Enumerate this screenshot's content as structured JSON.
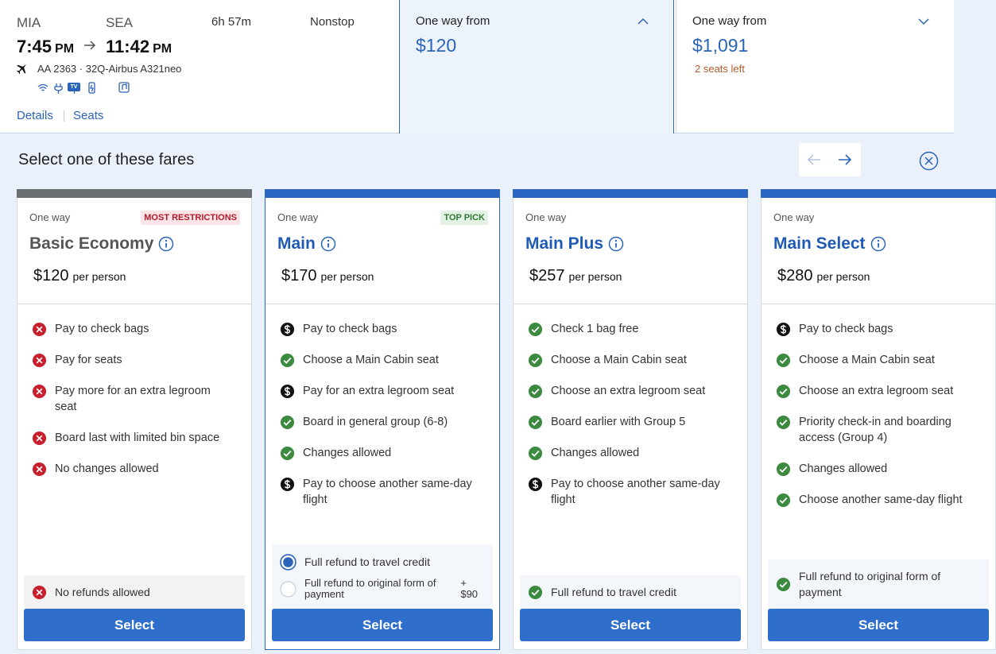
{
  "flight": {
    "origin": "MIA",
    "destination": "SEA",
    "depart_time": "7:45",
    "depart_period": "PM",
    "arrive_time": "11:42",
    "arrive_period": "PM",
    "duration": "6h 57m",
    "stops": "Nonstop",
    "aircraft": "AA 2363 · 32Q-Airbus A321neo",
    "tv_badge": "TV",
    "links": [
      "Details",
      "Seats"
    ]
  },
  "cabins": [
    {
      "label": "One way from",
      "price": "$120",
      "selected": true
    },
    {
      "label": "One way from",
      "price": "$1,091",
      "note": "2 seats left",
      "selected": false
    }
  ],
  "fares_panel": {
    "title": "Select one of these fares"
  },
  "fares": [
    {
      "trip": "One way",
      "badge": "MOST RESTRICTIONS",
      "badge_style": "warn",
      "name": "Basic Economy",
      "style": "basic",
      "price": "$120",
      "per": "per person",
      "features": [
        {
          "icon": "x",
          "text": "Pay to check bags"
        },
        {
          "icon": "x",
          "text": "Pay for seats"
        },
        {
          "icon": "x",
          "text": "Pay more for an extra legroom seat"
        },
        {
          "icon": "x",
          "text": "Board last with limited bin space"
        },
        {
          "icon": "x",
          "text": "No changes allowed"
        }
      ],
      "refund": {
        "style": "grey",
        "options": [
          {
            "icon": "x",
            "text": "No refunds allowed"
          }
        ]
      },
      "button": "Select"
    },
    {
      "trip": "One way",
      "badge": "TOP PICK",
      "badge_style": "good",
      "name": "Main",
      "style": "selected",
      "price": "$170",
      "per": "per person",
      "features": [
        {
          "icon": "dollar",
          "text": "Pay to check bags"
        },
        {
          "icon": "check",
          "text": "Choose a Main Cabin seat"
        },
        {
          "icon": "dollar",
          "text": "Pay for an extra legroom seat"
        },
        {
          "icon": "check",
          "text": "Board in general group (6-8)"
        },
        {
          "icon": "check",
          "text": "Changes allowed"
        },
        {
          "icon": "dollar",
          "text": "Pay to choose another same-day flight"
        }
      ],
      "refund": {
        "style": "blue",
        "options": [
          {
            "icon": "radio-on",
            "text": "Full refund to travel credit"
          },
          {
            "icon": "radio-off",
            "text": "Full refund to original form of payment",
            "extra": "+ $90"
          }
        ]
      },
      "button": "Select"
    },
    {
      "trip": "One way",
      "name": "Main Plus",
      "style": "normal",
      "price": "$257",
      "per": "per person",
      "features": [
        {
          "icon": "check",
          "text": "Check 1 bag free"
        },
        {
          "icon": "check",
          "text": "Choose a Main Cabin seat"
        },
        {
          "icon": "check",
          "text": "Choose an extra legroom seat"
        },
        {
          "icon": "check",
          "text": "Board earlier with Group 5"
        },
        {
          "icon": "check",
          "text": "Changes allowed"
        },
        {
          "icon": "dollar",
          "text": "Pay to choose another same-day flight"
        }
      ],
      "refund": {
        "style": "blue",
        "options": [
          {
            "icon": "check",
            "text": "Full refund to travel credit"
          }
        ]
      },
      "button": "Select"
    },
    {
      "trip": "One way",
      "name": "Main Select",
      "style": "normal",
      "price": "$280",
      "per": "per person",
      "features": [
        {
          "icon": "dollar",
          "text": "Pay to check bags"
        },
        {
          "icon": "check",
          "text": "Choose a Main Cabin seat"
        },
        {
          "icon": "check",
          "text": "Choose an extra legroom seat"
        },
        {
          "icon": "check",
          "text": "Priority check-in and boarding access (Group 4)"
        },
        {
          "icon": "check",
          "text": "Changes allowed"
        },
        {
          "icon": "check",
          "text": "Choose another same-day flight"
        }
      ],
      "refund": {
        "style": "blue",
        "options": [
          {
            "icon": "check",
            "text": "Full refund to original form of payment"
          }
        ]
      },
      "button": "Select"
    }
  ]
}
